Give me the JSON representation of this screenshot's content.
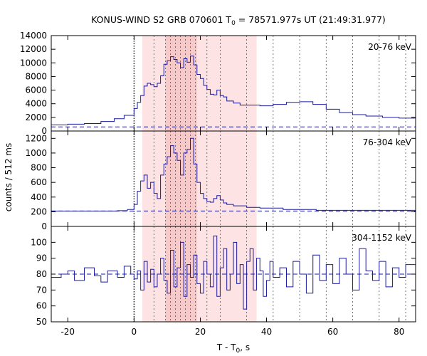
{
  "title_main": "KONUS-WIND S2 GRB 070601 T",
  "title_sub": "0",
  "title_rest": " = 78571.977s UT (21:49:31.977)",
  "xlabel_main": "T - T",
  "xlabel_sub": "0",
  "xlabel_rest": ", s",
  "ylabel": "counts / 512 ms",
  "colors": {
    "line": "#1a1aa0",
    "shade_light": "#fde3e3",
    "shade_dark": "#f8c9c9",
    "frame": "#000000"
  },
  "chart_data": [
    {
      "type": "line",
      "panel": "top",
      "band_label": "20-76 keV",
      "xlim": [
        -25,
        85
      ],
      "ylim": [
        0,
        14000
      ],
      "yticks": [
        0,
        2000,
        4000,
        6000,
        8000,
        10000,
        12000,
        14000
      ],
      "ytick_labels": [
        "0",
        "2000",
        "4000",
        "6000",
        "8000",
        "10000",
        "12000",
        "14000"
      ],
      "background_level": 600,
      "x": [
        -25,
        -20,
        -15,
        -10,
        -6,
        -3,
        0,
        1,
        2,
        3,
        4,
        5,
        6,
        7,
        8,
        9,
        10,
        11,
        12,
        13,
        14,
        15,
        16,
        17,
        18,
        19,
        20,
        21,
        22,
        23,
        24,
        25,
        26,
        27,
        28,
        30,
        32,
        35,
        38,
        42,
        46,
        50,
        54,
        58,
        62,
        66,
        70,
        75,
        80,
        85
      ],
      "values": [
        900,
        1000,
        1100,
        1400,
        1800,
        2300,
        3300,
        4200,
        5200,
        6600,
        7000,
        6800,
        6500,
        7000,
        8100,
        9800,
        10300,
        10900,
        10500,
        10000,
        9300,
        10600,
        10100,
        11000,
        9700,
        8300,
        7700,
        6700,
        6100,
        5400,
        5300,
        6000,
        5200,
        5000,
        4400,
        4100,
        3800,
        3800,
        3700,
        3900,
        4200,
        4300,
        3900,
        3200,
        2700,
        2400,
        2200,
        2000,
        1900,
        1700
      ]
    },
    {
      "type": "line",
      "panel": "middle",
      "band_label": "76-304 keV",
      "xlim": [
        -25,
        85
      ],
      "ylim": [
        0,
        1300
      ],
      "yticks": [
        0,
        200,
        400,
        600,
        800,
        1000,
        1200
      ],
      "ytick_labels": [
        "0",
        "200",
        "400",
        "600",
        "800",
        "1000",
        "1200"
      ],
      "background_level": 210,
      "x": [
        -25,
        -15,
        -5,
        -2,
        0,
        1,
        2,
        3,
        4,
        5,
        6,
        7,
        8,
        9,
        10,
        11,
        12,
        13,
        14,
        15,
        16,
        17,
        18,
        19,
        20,
        21,
        22,
        23,
        24,
        25,
        26,
        27,
        28,
        30,
        34,
        38,
        45,
        55,
        65,
        75,
        85
      ],
      "values": [
        210,
        210,
        215,
        230,
        300,
        480,
        620,
        700,
        520,
        600,
        450,
        380,
        700,
        850,
        950,
        1100,
        1000,
        900,
        700,
        1000,
        1050,
        1200,
        850,
        600,
        450,
        380,
        340,
        330,
        380,
        420,
        360,
        320,
        300,
        280,
        260,
        250,
        230,
        220,
        220,
        220,
        210
      ]
    },
    {
      "type": "line",
      "panel": "bottom",
      "band_label": "304-1152 keV",
      "xlim": [
        -25,
        85
      ],
      "ylim": [
        50,
        110
      ],
      "yticks": [
        50,
        60,
        70,
        80,
        90,
        100
      ],
      "ytick_labels": [
        "50",
        "60",
        "70",
        "80",
        "90",
        "100"
      ],
      "background_level": 80,
      "x": [
        -25,
        -22,
        -20,
        -18,
        -15,
        -12,
        -10,
        -8,
        -5,
        -3,
        -1,
        0,
        1,
        2,
        3,
        4,
        5,
        6,
        7,
        8,
        9,
        10,
        11,
        12,
        13,
        14,
        15,
        16,
        17,
        18,
        19,
        20,
        21,
        22,
        23,
        24,
        25,
        26,
        27,
        28,
        29,
        30,
        31,
        32,
        33,
        34,
        35,
        36,
        37,
        38,
        39,
        40,
        41,
        42,
        44,
        46,
        48,
        50,
        52,
        54,
        56,
        58,
        60,
        62,
        64,
        66,
        68,
        70,
        72,
        74,
        76,
        78,
        80,
        82,
        85
      ],
      "values": [
        78,
        80,
        82,
        76,
        84,
        79,
        75,
        82,
        78,
        85,
        80,
        77,
        82,
        70,
        88,
        75,
        83,
        72,
        80,
        90,
        76,
        68,
        95,
        72,
        84,
        100,
        66,
        86,
        78,
        92,
        74,
        68,
        88,
        80,
        72,
        104,
        66,
        84,
        96,
        70,
        80,
        100,
        74,
        86,
        58,
        88,
        96,
        70,
        90,
        82,
        66,
        76,
        88,
        78,
        84,
        72,
        88,
        80,
        68,
        92,
        76,
        86,
        74,
        90,
        80,
        70,
        96,
        82,
        76,
        88,
        72,
        84,
        78,
        86,
        78
      ]
    }
  ],
  "xaxis": {
    "xlim": [
      -25,
      85
    ],
    "ticks": [
      -20,
      0,
      20,
      40,
      60,
      80
    ],
    "tick_labels": [
      "-20",
      "0",
      "20",
      "40",
      "60",
      "80"
    ]
  },
  "shading": {
    "light": [
      2.5,
      37
    ],
    "dark": [
      9.5,
      19
    ]
  },
  "vlines": {
    "t0": 0,
    "dashed": [
      6,
      9.5,
      11,
      12.5,
      14,
      15.5,
      17,
      18.5,
      22,
      26,
      34,
      42,
      50,
      58,
      66,
      74,
      82
    ]
  }
}
